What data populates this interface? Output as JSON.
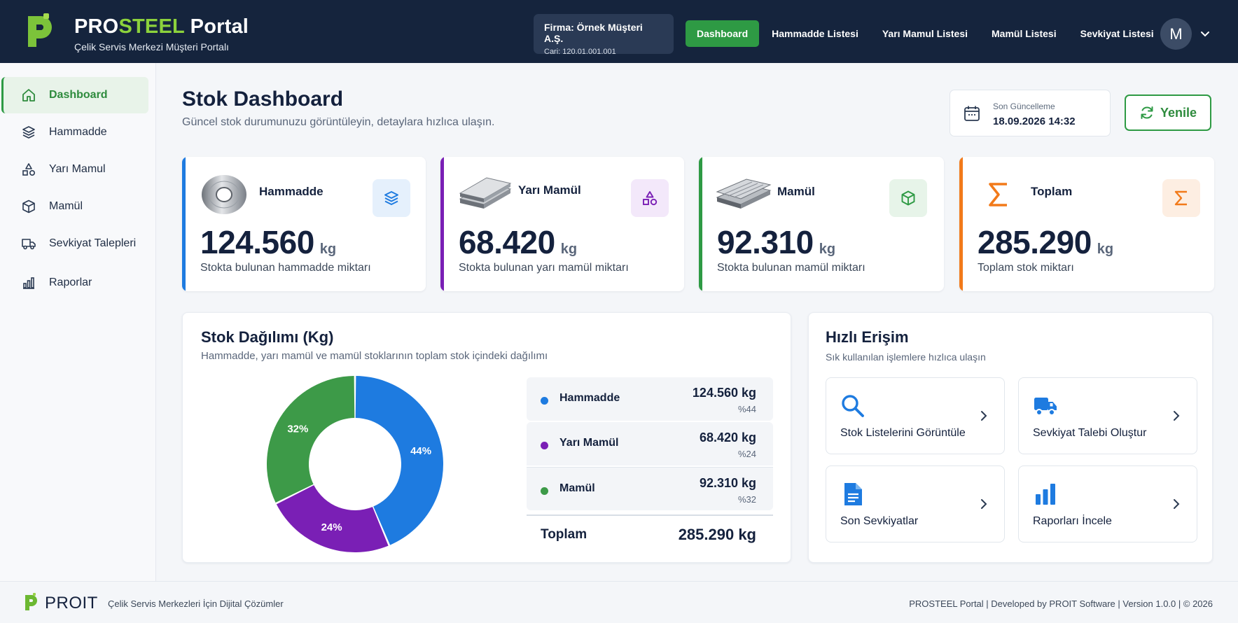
{
  "header": {
    "brand_part1": "PRO",
    "brand_part2": "STEEL",
    "brand_part3": " Portal",
    "brand_subtitle": "Çelik Servis Merkezi Müşteri Portalı",
    "company_name": "Firma: Örnek Müşteri A.Ş.",
    "company_code": "Cari: 120.01.001.001",
    "nav": [
      "Dashboard",
      "Hammadde Listesi",
      "Yarı Mamul Listesi",
      "Mamül Listesi",
      "Sevkiyat Listesi"
    ],
    "nav_active": "Dashboard",
    "avatar_initial": "M"
  },
  "sidebar": {
    "items": [
      {
        "label": "Dashboard",
        "icon": "home-icon"
      },
      {
        "label": "Hammadde",
        "icon": "layers-icon"
      },
      {
        "label": "Yarı Mamul",
        "icon": "shapes-icon"
      },
      {
        "label": "Mamül",
        "icon": "box-icon"
      },
      {
        "label": "Sevkiyat Talepleri",
        "icon": "truck-icon"
      },
      {
        "label": "Raporlar",
        "icon": "bar-chart-icon"
      }
    ],
    "active": "Dashboard"
  },
  "page": {
    "title": "Stok Dashboard",
    "subtitle": "Güncel stok durumunuzu görüntüleyin, detaylara hızlıca ulaşın.",
    "update_label": "Son Güncelleme",
    "update_value": "18.09.2026 14:32",
    "refresh_label": "Yenile"
  },
  "cards": [
    {
      "title": "Hammadde",
      "value": "124.560",
      "unit": "kg",
      "desc": "Stokta bulunan hammadde miktarı",
      "color": "#1e7be0",
      "badge_bg": "#e5f0fc",
      "icon": "layers-icon"
    },
    {
      "title": "Yarı Mamül",
      "value": "68.420",
      "unit": "kg",
      "desc": "Stokta bulunan yarı mamül miktarı",
      "color": "#7a1fb5",
      "badge_bg": "#f3e8fa",
      "icon": "shapes-icon"
    },
    {
      "title": "Mamül",
      "value": "92.310",
      "unit": "kg",
      "desc": "Stokta bulunan mamül miktarı",
      "color": "#2e9a44",
      "badge_bg": "#e7f4e9",
      "icon": "box-icon"
    },
    {
      "title": "Toplam",
      "value": "285.290",
      "unit": "kg",
      "desc": "Toplam stok miktarı",
      "color": "#f27a1a",
      "badge_bg": "#fdeee2",
      "icon": "sigma-icon"
    }
  ],
  "distribution": {
    "title": "Stok Dağılımı (Kg)",
    "subtitle": "Hammadde, yarı mamül ve mamül stoklarının toplam stok içindeki dağılımı",
    "total_label": "Toplam",
    "total_value": "285.290 kg"
  },
  "chart_data": {
    "type": "pie",
    "categories": [
      "Hammadde",
      "Yarı Mamül",
      "Mamül"
    ],
    "values": [
      124560,
      68420,
      92310
    ],
    "value_labels": [
      "124.560 kg",
      "68.420 kg",
      "92.310 kg"
    ],
    "percent_labels": [
      "%44",
      "%24",
      "%32"
    ],
    "slice_labels": [
      "44%",
      "24%",
      "32%"
    ],
    "colors": [
      "#1e7be0",
      "#7a1fb5",
      "#3d9a48"
    ],
    "donut": true
  },
  "quick_access": {
    "title": "Hızlı Erişim",
    "subtitle": "Sık kullanılan işlemlere hızlıca ulaşın",
    "items": [
      {
        "label": "Stok Listelerini Görüntüle",
        "icon": "search-icon"
      },
      {
        "label": "Sevkiyat Talebi Oluştur",
        "icon": "truck-icon"
      },
      {
        "label": "Son Sevkiyatlar",
        "icon": "document-icon"
      },
      {
        "label": "Raporları İncele",
        "icon": "bar-chart-icon"
      }
    ]
  },
  "footer": {
    "brand": "PROIT",
    "tagline": "Çelik Servis Merkezleri İçin Dijital Çözümler",
    "copyright": "PROSTEEL Portal | Developed by PROIT Software | Version 1.0.0 | © 2026"
  }
}
